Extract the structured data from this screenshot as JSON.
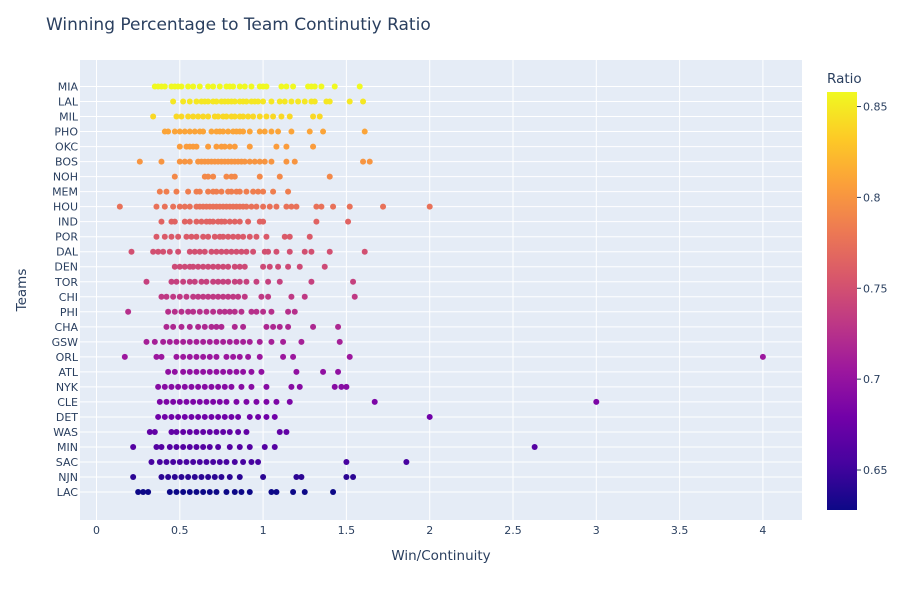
{
  "chart_data": {
    "type": "scatter",
    "title": "Winning Percentage to Team Continutiy Ratio",
    "xlabel": "Win/Continuity",
    "ylabel": "Teams",
    "xlim": [
      -0.1,
      4.25
    ],
    "x_ticks": [
      0,
      0.5,
      1,
      1.5,
      2,
      2.5,
      3,
      3.5,
      4
    ],
    "x_tick_labels": [
      "0",
      "0.5",
      "1",
      "1.5",
      "2",
      "2.5",
      "3",
      "3.5",
      "4"
    ],
    "grid": true,
    "colorbar": {
      "title": "Ratio",
      "range": [
        0.628,
        0.858
      ],
      "ticks": [
        0.65,
        0.7,
        0.75,
        0.8,
        0.85
      ],
      "tick_labels": [
        "0.65",
        "0.7",
        "0.75",
        "0.8",
        "0.85"
      ],
      "colorscale": [
        "#0d0887",
        "#46039f",
        "#7201a8",
        "#9c179e",
        "#bd3786",
        "#d8576b",
        "#ed7953",
        "#fb9f3a",
        "#fdca26",
        "#f0f921"
      ]
    },
    "series": [
      {
        "team": "MIA",
        "ratio": 0.858,
        "x": [
          0.35,
          0.37,
          0.39,
          0.41,
          0.45,
          0.47,
          0.49,
          0.51,
          0.55,
          0.58,
          0.62,
          0.67,
          0.7,
          0.74,
          0.78,
          0.8,
          0.82,
          0.86,
          0.89,
          0.93,
          0.98,
          1.0,
          1.02,
          1.11,
          1.14,
          1.18,
          1.27,
          1.29,
          1.31,
          1.35,
          1.43,
          1.58
        ]
      },
      {
        "team": "LAL",
        "ratio": 0.848,
        "x": [
          0.46,
          0.52,
          0.56,
          0.6,
          0.63,
          0.65,
          0.67,
          0.7,
          0.72,
          0.75,
          0.77,
          0.79,
          0.81,
          0.83,
          0.86,
          0.88,
          0.9,
          0.93,
          0.95,
          0.97,
          1.0,
          1.05,
          1.1,
          1.13,
          1.17,
          1.21,
          1.25,
          1.29,
          1.31,
          1.38,
          1.4,
          1.52,
          1.6
        ]
      },
      {
        "team": "MIL",
        "ratio": 0.84,
        "x": [
          0.34,
          0.48,
          0.51,
          0.55,
          0.58,
          0.61,
          0.64,
          0.67,
          0.71,
          0.73,
          0.76,
          0.78,
          0.81,
          0.83,
          0.86,
          0.88,
          0.91,
          0.94,
          0.98,
          1.02,
          1.06,
          1.11,
          1.16,
          1.3,
          1.34
        ]
      },
      {
        "team": "PHO",
        "ratio": 0.81,
        "x": [
          0.41,
          0.43,
          0.47,
          0.5,
          0.53,
          0.56,
          0.59,
          0.62,
          0.64,
          0.69,
          0.72,
          0.74,
          0.76,
          0.79,
          0.82,
          0.84,
          0.86,
          0.88,
          0.92,
          0.98,
          1.01,
          1.05,
          1.09,
          1.17,
          1.28,
          1.36,
          1.61
        ]
      },
      {
        "team": "OKC",
        "ratio": 0.805,
        "x": [
          0.5,
          0.54,
          0.56,
          0.58,
          0.6,
          0.67,
          0.72,
          0.75,
          0.77,
          0.8,
          0.83,
          0.92,
          1.08,
          1.14,
          1.3
        ]
      },
      {
        "team": "BOS",
        "ratio": 0.8,
        "x": [
          0.26,
          0.39,
          0.5,
          0.53,
          0.56,
          0.61,
          0.63,
          0.65,
          0.67,
          0.69,
          0.71,
          0.73,
          0.75,
          0.77,
          0.79,
          0.81,
          0.83,
          0.85,
          0.87,
          0.89,
          0.92,
          0.95,
          0.98,
          1.01,
          1.05,
          1.14,
          1.19,
          1.6,
          1.64
        ]
      },
      {
        "team": "NOH",
        "ratio": 0.792,
        "x": [
          0.47,
          0.65,
          0.67,
          0.7,
          0.78,
          0.81,
          0.83,
          0.98,
          1.1,
          1.4
        ]
      },
      {
        "team": "MEM",
        "ratio": 0.785,
        "x": [
          0.38,
          0.42,
          0.48,
          0.55,
          0.6,
          0.62,
          0.67,
          0.7,
          0.72,
          0.75,
          0.79,
          0.81,
          0.84,
          0.86,
          0.9,
          0.94,
          0.97,
          1.0,
          1.06,
          1.15
        ]
      },
      {
        "team": "HOU",
        "ratio": 0.775,
        "x": [
          0.14,
          0.36,
          0.41,
          0.46,
          0.5,
          0.53,
          0.56,
          0.6,
          0.62,
          0.64,
          0.66,
          0.68,
          0.7,
          0.72,
          0.74,
          0.76,
          0.78,
          0.8,
          0.82,
          0.84,
          0.86,
          0.88,
          0.9,
          0.93,
          0.96,
          1.0,
          1.04,
          1.08,
          1.14,
          1.17,
          1.2,
          1.32,
          1.35,
          1.42,
          1.52,
          1.72,
          2.0
        ]
      },
      {
        "team": "IND",
        "ratio": 0.765,
        "x": [
          0.39,
          0.45,
          0.47,
          0.53,
          0.56,
          0.6,
          0.63,
          0.66,
          0.68,
          0.7,
          0.73,
          0.75,
          0.77,
          0.8,
          0.83,
          0.86,
          0.91,
          0.98,
          1.0,
          1.32,
          1.51
        ]
      },
      {
        "team": "POR",
        "ratio": 0.758,
        "x": [
          0.36,
          0.41,
          0.45,
          0.49,
          0.54,
          0.57,
          0.6,
          0.64,
          0.67,
          0.71,
          0.74,
          0.76,
          0.79,
          0.82,
          0.85,
          0.88,
          0.92,
          0.96,
          1.02,
          1.13,
          1.16,
          1.28
        ]
      },
      {
        "team": "DAL",
        "ratio": 0.75,
        "x": [
          0.21,
          0.34,
          0.37,
          0.4,
          0.44,
          0.49,
          0.56,
          0.59,
          0.62,
          0.65,
          0.69,
          0.72,
          0.75,
          0.78,
          0.81,
          0.84,
          0.87,
          0.9,
          0.94,
          1.01,
          1.03,
          1.08,
          1.16,
          1.25,
          1.29,
          1.4,
          1.61
        ]
      },
      {
        "team": "DEN",
        "ratio": 0.745,
        "x": [
          0.47,
          0.5,
          0.53,
          0.56,
          0.58,
          0.61,
          0.64,
          0.67,
          0.7,
          0.73,
          0.76,
          0.79,
          0.83,
          0.86,
          0.89,
          1.0,
          1.04,
          1.09,
          1.15,
          1.22,
          1.37
        ]
      },
      {
        "team": "TOR",
        "ratio": 0.738,
        "x": [
          0.3,
          0.45,
          0.48,
          0.52,
          0.56,
          0.59,
          0.63,
          0.66,
          0.7,
          0.73,
          0.76,
          0.79,
          0.83,
          0.86,
          0.9,
          0.96,
          1.03,
          1.1,
          1.29,
          1.54
        ]
      },
      {
        "team": "CHI",
        "ratio": 0.732,
        "x": [
          0.39,
          0.42,
          0.46,
          0.5,
          0.54,
          0.58,
          0.61,
          0.64,
          0.67,
          0.7,
          0.73,
          0.76,
          0.79,
          0.82,
          0.85,
          0.89,
          0.99,
          1.03,
          1.17,
          1.25,
          1.55
        ]
      },
      {
        "team": "PHI",
        "ratio": 0.725,
        "x": [
          0.19,
          0.43,
          0.47,
          0.51,
          0.55,
          0.58,
          0.62,
          0.66,
          0.7,
          0.74,
          0.77,
          0.8,
          0.83,
          0.87,
          0.93,
          0.96,
          1.0,
          1.05,
          1.15,
          1.19
        ]
      },
      {
        "team": "CHA",
        "ratio": 0.718,
        "x": [
          0.42,
          0.46,
          0.51,
          0.56,
          0.61,
          0.65,
          0.69,
          0.72,
          0.75,
          0.83,
          0.88,
          1.02,
          1.06,
          1.1,
          1.15,
          1.3,
          1.45
        ]
      },
      {
        "team": "GSW",
        "ratio": 0.712,
        "x": [
          0.3,
          0.35,
          0.4,
          0.44,
          0.48,
          0.52,
          0.56,
          0.6,
          0.64,
          0.68,
          0.72,
          0.76,
          0.8,
          0.84,
          0.88,
          0.92,
          0.98,
          1.05,
          1.12,
          1.23,
          1.46
        ]
      },
      {
        "team": "ORL",
        "ratio": 0.705,
        "x": [
          0.17,
          0.36,
          0.39,
          0.48,
          0.52,
          0.56,
          0.6,
          0.64,
          0.68,
          0.72,
          0.78,
          0.82,
          0.86,
          0.91,
          0.98,
          1.12,
          1.18,
          1.52,
          4.0
        ]
      },
      {
        "team": "ATL",
        "ratio": 0.698,
        "x": [
          0.43,
          0.47,
          0.52,
          0.56,
          0.6,
          0.64,
          0.68,
          0.72,
          0.76,
          0.8,
          0.84,
          0.88,
          0.93,
          0.99,
          1.2,
          1.36,
          1.45
        ]
      },
      {
        "team": "NYK",
        "ratio": 0.692,
        "x": [
          0.37,
          0.41,
          0.45,
          0.49,
          0.53,
          0.57,
          0.61,
          0.65,
          0.69,
          0.73,
          0.77,
          0.81,
          0.87,
          0.93,
          1.02,
          1.17,
          1.22,
          1.43,
          1.47,
          1.5
        ]
      },
      {
        "team": "CLE",
        "ratio": 0.685,
        "x": [
          0.38,
          0.42,
          0.46,
          0.5,
          0.54,
          0.58,
          0.62,
          0.66,
          0.7,
          0.74,
          0.78,
          0.84,
          0.9,
          0.96,
          1.02,
          1.08,
          1.16,
          1.67,
          3.0
        ]
      },
      {
        "team": "DET",
        "ratio": 0.678,
        "x": [
          0.37,
          0.41,
          0.45,
          0.49,
          0.53,
          0.57,
          0.61,
          0.65,
          0.69,
          0.73,
          0.77,
          0.81,
          0.85,
          0.92,
          0.97,
          1.02,
          1.07,
          2.0
        ]
      },
      {
        "team": "WAS",
        "ratio": 0.67,
        "x": [
          0.32,
          0.35,
          0.45,
          0.48,
          0.52,
          0.56,
          0.6,
          0.64,
          0.68,
          0.72,
          0.76,
          0.8,
          0.85,
          0.9,
          1.1,
          1.14
        ]
      },
      {
        "team": "MIN",
        "ratio": 0.662,
        "x": [
          0.22,
          0.36,
          0.39,
          0.44,
          0.48,
          0.52,
          0.56,
          0.6,
          0.64,
          0.68,
          0.73,
          0.8,
          0.86,
          0.92,
          1.01,
          1.07,
          2.63
        ]
      },
      {
        "team": "SAC",
        "ratio": 0.655,
        "x": [
          0.33,
          0.38,
          0.42,
          0.46,
          0.5,
          0.54,
          0.58,
          0.62,
          0.66,
          0.7,
          0.74,
          0.78,
          0.83,
          0.88,
          0.93,
          0.97,
          1.5,
          1.86
        ]
      },
      {
        "team": "NJN",
        "ratio": 0.642,
        "x": [
          0.22,
          0.39,
          0.43,
          0.47,
          0.51,
          0.55,
          0.59,
          0.63,
          0.67,
          0.71,
          0.75,
          0.8,
          0.86,
          1.0,
          1.2,
          1.23,
          1.5,
          1.54
        ]
      },
      {
        "team": "LAC",
        "ratio": 0.628,
        "x": [
          0.25,
          0.28,
          0.31,
          0.44,
          0.48,
          0.52,
          0.56,
          0.6,
          0.64,
          0.68,
          0.72,
          0.78,
          0.83,
          0.87,
          0.92,
          1.05,
          1.08,
          1.18,
          1.25,
          1.42
        ]
      }
    ]
  }
}
